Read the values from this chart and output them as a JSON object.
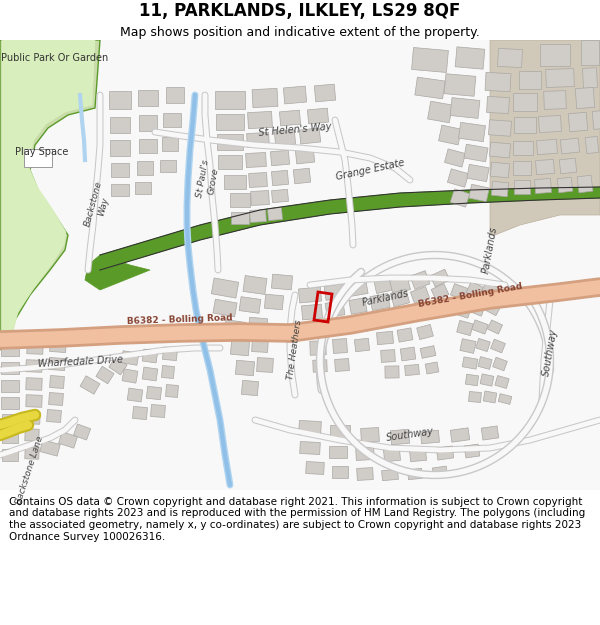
{
  "title": "11, PARKLANDS, ILKLEY, LS29 8QF",
  "subtitle": "Map shows position and indicative extent of the property.",
  "footer": "Contains OS data © Crown copyright and database right 2021. This information is subject to Crown copyright and database rights 2023 and is reproduced with the permission of HM Land Registry. The polygons (including the associated geometry, namely x, y co-ordinates) are subject to Crown copyright and database rights 2023 Ordnance Survey 100026316.",
  "map_bg": "#f8f8f8",
  "park_color": "#c8dba8",
  "park_dark": "#6aaa30",
  "park_edge": "#5a9a28",
  "play_bg": "#d8eebc",
  "green_strip_color": "#5a9a28",
  "building_color": "#d0ccc8",
  "building_outline": "#aaa8a4",
  "water_color": "#a0c8e0",
  "road_outer": "#c8c8c8",
  "road_inner": "#f8f8f8",
  "major_road_outer": "#d4a080",
  "major_road_inner": "#f0c0a0",
  "highlight_color": "#cc0000",
  "tan_area": "#d0c8b8",
  "yellow_road": "#e8d840",
  "yellow_road_outer": "#c8b820",
  "label_color": "#444444",
  "road_label_color": "#664422",
  "title_fontsize": 12,
  "subtitle_fontsize": 9,
  "footer_fontsize": 7.5
}
